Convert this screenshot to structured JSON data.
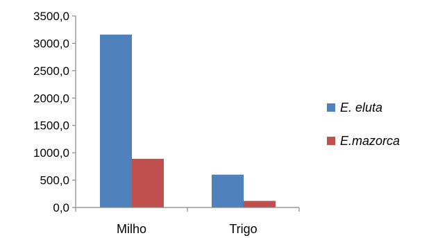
{
  "chart_data": {
    "type": "bar",
    "categories": [
      "Milho",
      "Trigo"
    ],
    "series": [
      {
        "name": "E. eluta",
        "values": [
          3160,
          600
        ]
      },
      {
        "name": "E.mazorca",
        "values": [
          890,
          120
        ]
      }
    ],
    "y_ticks": [
      "0,0",
      "500,0",
      "1000,0",
      "1500,0",
      "2000,0",
      "2500,0",
      "3000,0",
      "3500,0"
    ],
    "ylim": [
      0,
      3500
    ],
    "grid": false,
    "legend_position": "right",
    "colors": [
      "#4F81BD",
      "#C0504D"
    ]
  }
}
